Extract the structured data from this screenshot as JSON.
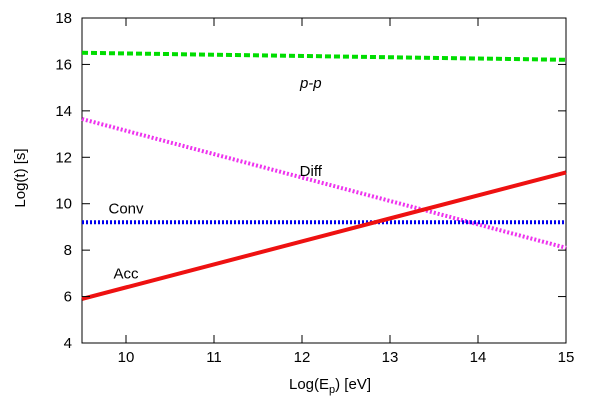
{
  "chart_data": {
    "type": "line",
    "title": "",
    "xlabel": "Log(E",
    "xlabel_sub": "p",
    "xlabel_tail": ") [eV]",
    "ylabel": "Log(t) [s]",
    "xlim": [
      9.5,
      15
    ],
    "ylim": [
      4,
      18
    ],
    "x_ticks": [
      10,
      11,
      12,
      13,
      14,
      15
    ],
    "y_ticks": [
      4,
      6,
      8,
      10,
      12,
      14,
      16,
      18
    ],
    "grid": false,
    "legend": "none",
    "series": [
      {
        "name": "p-p",
        "color": "#00dd00",
        "style": "dashed",
        "x": [
          9.5,
          15
        ],
        "y": [
          16.5,
          16.2
        ]
      },
      {
        "name": "Diff",
        "color": "#ee33ee",
        "style": "dotted",
        "x": [
          9.5,
          15
        ],
        "y": [
          13.65,
          8.1
        ]
      },
      {
        "name": "Conv",
        "color": "#0000ee",
        "style": "dotted",
        "x": [
          9.5,
          15
        ],
        "y": [
          9.2,
          9.2
        ]
      },
      {
        "name": "Acc",
        "color": "#ee1111",
        "style": "solid",
        "x": [
          9.5,
          15
        ],
        "y": [
          5.9,
          11.35
        ]
      }
    ],
    "annotations": [
      {
        "text": "p-p",
        "x": 12.1,
        "y": 15.2,
        "italic": true
      },
      {
        "text": "Diff",
        "x": 12.1,
        "y": 11.4,
        "italic": false
      },
      {
        "text": "Conv",
        "x": 10.0,
        "y": 9.8,
        "italic": false
      },
      {
        "text": "Acc",
        "x": 10.0,
        "y": 7.0,
        "italic": false
      }
    ]
  }
}
